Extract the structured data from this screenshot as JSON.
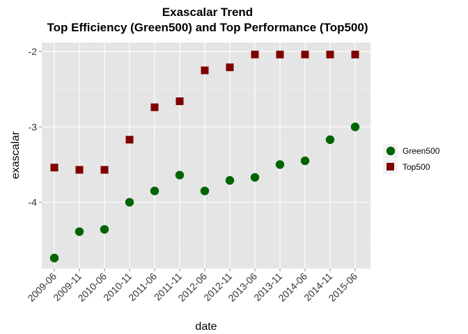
{
  "chart_data": {
    "type": "scatter",
    "title": "Exascalar Trend",
    "subtitle": "Top Efficiency (Green500) and Top Performance (Top500)",
    "xlabel": "date",
    "ylabel": "exascalar",
    "categories": [
      "2009-06",
      "2009-11",
      "2010-06",
      "2010-11",
      "2011-06",
      "2011-11",
      "2012-06",
      "2012-11",
      "2013-06",
      "2013-11",
      "2014-06",
      "2014-11",
      "2015-06"
    ],
    "yticks": [
      -4,
      -3,
      -2
    ],
    "ytick_labels": [
      "-4",
      "-3",
      "-2"
    ],
    "ylim": [
      -4.88,
      -1.88
    ],
    "grid": true,
    "legend_position": "right",
    "series": [
      {
        "name": "Green500",
        "marker": "circle",
        "color": "#006400",
        "values": [
          -4.74,
          -4.39,
          -4.36,
          -4.0,
          -3.85,
          -3.64,
          -3.85,
          -3.71,
          -3.67,
          -3.5,
          -3.45,
          -3.17,
          -3.0
        ]
      },
      {
        "name": "Top500",
        "marker": "square",
        "color": "#7F0000",
        "values": [
          -3.54,
          -3.57,
          -3.57,
          -3.17,
          -2.74,
          -2.66,
          -2.25,
          -2.21,
          -2.04,
          -2.04,
          -2.04,
          -2.04,
          -2.04
        ]
      }
    ]
  }
}
